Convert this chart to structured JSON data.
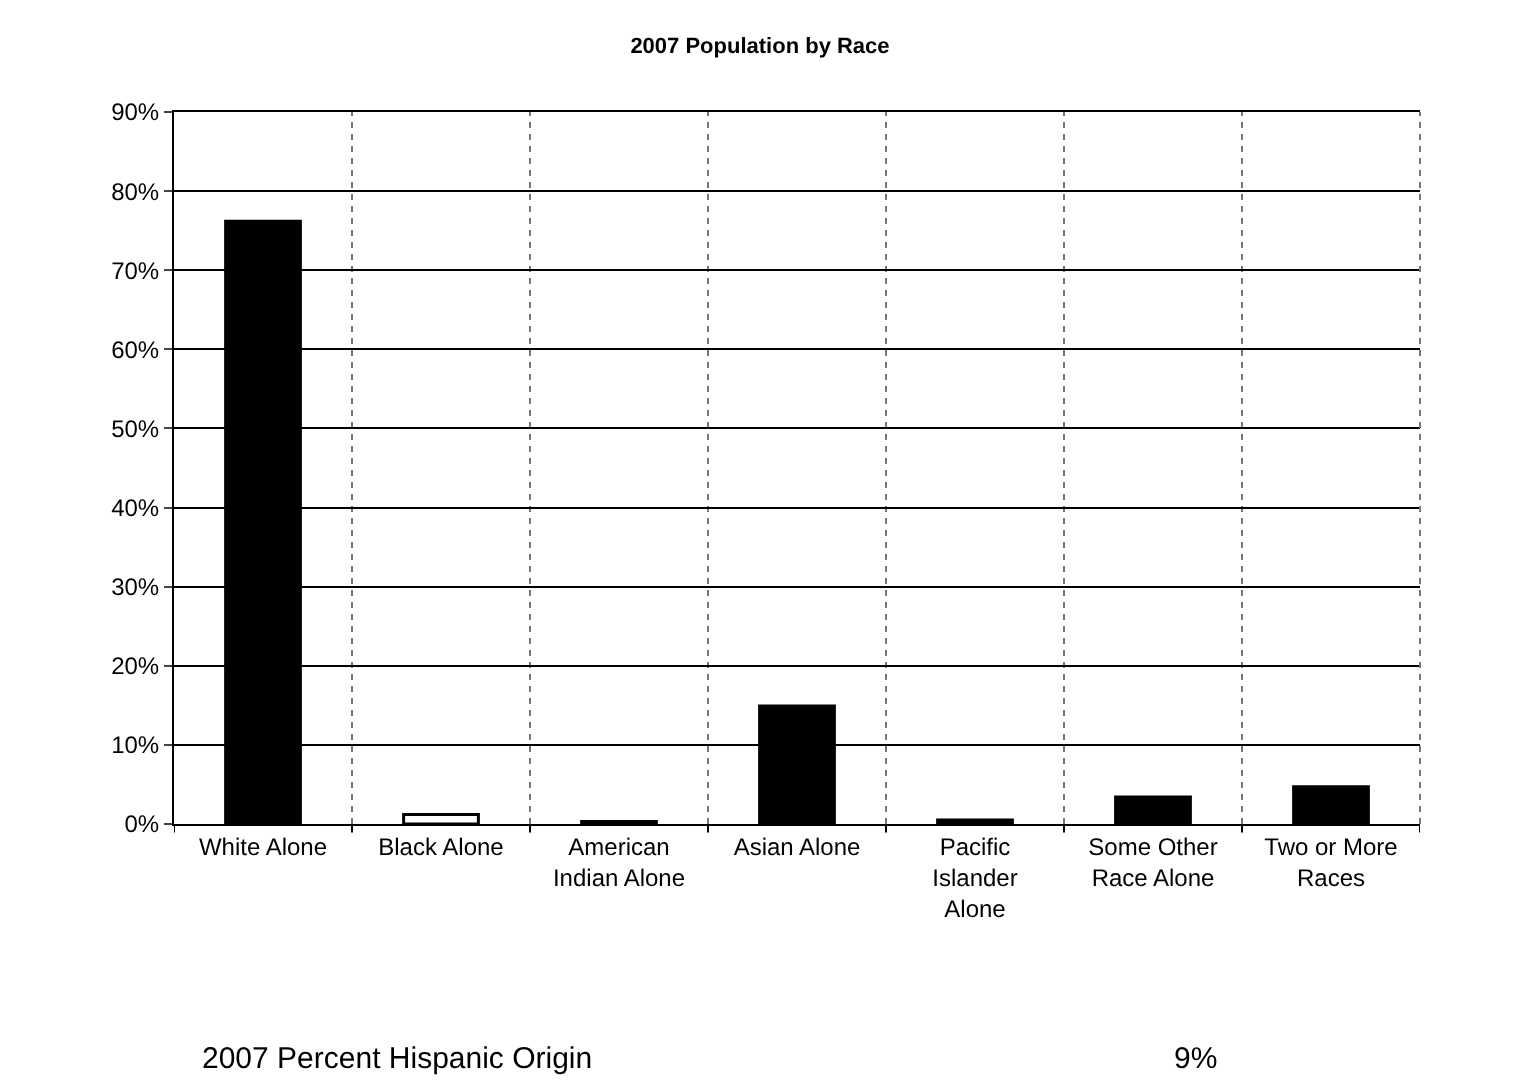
{
  "chart_data": {
    "type": "bar",
    "title": "2007 Population by Race",
    "categories": [
      "White Alone",
      "Black Alone",
      "American Indian Alone",
      "Asian Alone",
      "Pacific Islander Alone",
      "Some Other Race Alone",
      "Two or More Races"
    ],
    "values": [
      76.2,
      1.2,
      0.3,
      14.9,
      0.5,
      3.4,
      4.7
    ],
    "colors": [
      "#000000",
      "#ffffff",
      "#000000",
      "#000000",
      "#000000",
      "#000000",
      "#000000"
    ],
    "ylim": [
      0,
      90
    ],
    "yticks": [
      {
        "value": 0,
        "label": "0%"
      },
      {
        "value": 10,
        "label": "10%"
      },
      {
        "value": 20,
        "label": "20%"
      },
      {
        "value": 30,
        "label": "30%"
      },
      {
        "value": 40,
        "label": "40%"
      },
      {
        "value": 50,
        "label": "50%"
      },
      {
        "value": 60,
        "label": "60%"
      },
      {
        "value": 70,
        "label": "70%"
      },
      {
        "value": 80,
        "label": "80%"
      },
      {
        "value": 90,
        "label": "90%"
      }
    ],
    "grid": true,
    "annotations": [
      "2007 Percent Hispanic Origin",
      "9%"
    ]
  }
}
